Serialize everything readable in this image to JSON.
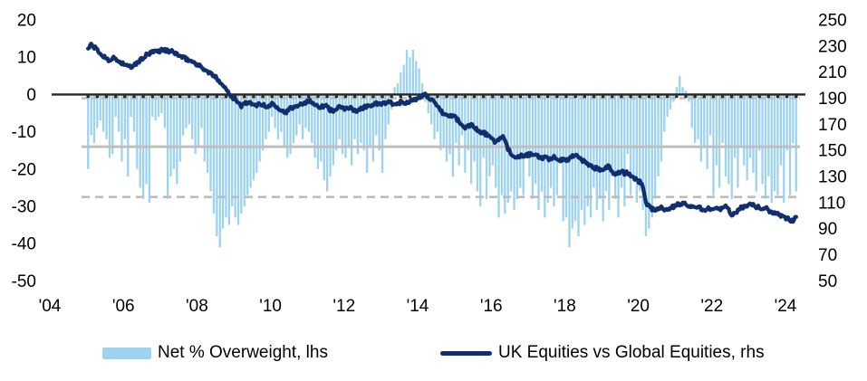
{
  "legend": {
    "bars_label": "Net % Overweight, lhs",
    "line_label": "UK Equities vs Global Equities, rhs"
  },
  "colors": {
    "bars": "#9CD3F0",
    "line": "#112E6E",
    "zero_line": "#262626",
    "ref_solid": "#BFBFBF",
    "ref_dashed": "#BDBDBD",
    "axis_text": "#000000",
    "background": "#FFFFFF"
  },
  "chart_data": {
    "type": "bar+line",
    "title": "",
    "grid": "off",
    "legend_position": "bottom",
    "x_axis": {
      "labels": [
        "'04",
        "'06",
        "'08",
        "'10",
        "'12",
        "'14",
        "'16",
        "'18",
        "'20",
        "'22",
        "'24"
      ],
      "years": [
        2004,
        2006,
        2008,
        2010,
        2012,
        2014,
        2016,
        2018,
        2020,
        2022,
        2024
      ],
      "range": [
        2004,
        2024.6
      ]
    },
    "left_axis": {
      "ticks": [
        20,
        10,
        0,
        -10,
        -20,
        -30,
        -40,
        -50
      ],
      "range": [
        -50,
        20
      ]
    },
    "right_axis": {
      "ticks": [
        250,
        230,
        210,
        190,
        170,
        150,
        130,
        110,
        90,
        70,
        50
      ],
      "range": [
        50,
        250
      ]
    },
    "reference_lines": [
      {
        "axis": "right",
        "value": 190,
        "style": "dashed",
        "note": "dashed gridline just under zero line"
      },
      {
        "axis": "left",
        "value": -14,
        "style": "solid",
        "note": "long-run average of Net % Overweight"
      },
      {
        "axis": "left",
        "value": -27.5,
        "style": "dashed",
        "note": "lower reference band"
      }
    ],
    "series": [
      {
        "name": "Net % Overweight, lhs",
        "type": "bar",
        "axis": "left",
        "start": "2005-01",
        "freq": "monthly",
        "values": [
          -20,
          -11,
          -13,
          -9,
          -7,
          -10,
          -12,
          -17,
          -16,
          -6,
          -10,
          -18,
          -12,
          -22,
          -6,
          -10,
          -20,
          -25,
          -28,
          -24,
          -29,
          -6,
          -7,
          -6,
          -5,
          -9,
          -28,
          -22,
          -20,
          -24,
          -18,
          -11,
          -9,
          -8,
          -12,
          -16,
          -14,
          -9,
          -18,
          -21,
          -26,
          -32,
          -38,
          -41,
          -36,
          -33,
          -35,
          -30,
          -33,
          -35,
          -32,
          -30,
          -27,
          -25,
          -23,
          -21,
          -18,
          -15,
          -12,
          -10,
          -6,
          -9,
          -12,
          -10,
          -14,
          -17,
          -16,
          -13,
          -11,
          -8,
          -12,
          -9,
          -10,
          -13,
          -17,
          -20,
          -18,
          -23,
          -26,
          -22,
          -19,
          -15,
          -12,
          -16,
          -17,
          -14,
          -19,
          -12,
          -16,
          -13,
          -15,
          -21,
          -14,
          -18,
          -11,
          -15,
          -21,
          -12,
          -8,
          -4,
          2,
          3,
          6,
          8,
          12,
          10,
          12,
          9,
          7,
          3,
          -2,
          -5,
          -8,
          -12,
          -10,
          -15,
          -14,
          -18,
          -16,
          -22,
          -13,
          -19,
          -11,
          -21,
          -15,
          -24,
          -18,
          -26,
          -30,
          -17,
          -28,
          -22,
          -19,
          -25,
          -33,
          -27,
          -32,
          -29,
          -26,
          -31,
          -28,
          -25,
          -27,
          -16,
          -22,
          -28,
          -24,
          -31,
          -26,
          -33,
          -29,
          -25,
          -30,
          -27,
          -18,
          -34,
          -33,
          -41,
          -36,
          -34,
          -38,
          -31,
          -35,
          -30,
          -33,
          -25,
          -31,
          -28,
          -34,
          -26,
          -31,
          -22,
          -28,
          -33,
          -25,
          -30,
          -16,
          -27,
          -23,
          -29,
          -26,
          -31,
          -38,
          -36,
          -33,
          -28,
          -22,
          -18,
          -10,
          -6,
          -4,
          -2,
          2,
          5,
          2,
          1,
          -2,
          -9,
          -13,
          -12,
          -18,
          -14,
          -20,
          -11,
          -27,
          -19,
          -25,
          -13,
          -22,
          -24,
          -28,
          -17,
          -25,
          -14,
          -19,
          -23,
          -17,
          -21,
          -26,
          -15,
          -24,
          -28,
          -22,
          -29,
          -26,
          -27,
          -19,
          -29,
          -15,
          -27,
          -13,
          -26
        ]
      },
      {
        "name": "UK Equities vs Global Equities, rhs",
        "type": "line",
        "axis": "right",
        "start": "2005-01",
        "freq": "monthly",
        "values": [
          228,
          231,
          229,
          227,
          224,
          222,
          221,
          219,
          221,
          220,
          218,
          217,
          216,
          214,
          214,
          215,
          217,
          219,
          221,
          223,
          224,
          225,
          226,
          226,
          227,
          227,
          226,
          226,
          225,
          224,
          222,
          221,
          220,
          219,
          218,
          217,
          215,
          214,
          212,
          210,
          209,
          207,
          205,
          203,
          200,
          197,
          194,
          191,
          189,
          186,
          184,
          186,
          187,
          186,
          184,
          185,
          186,
          185,
          183,
          184,
          186,
          185,
          183,
          181,
          179,
          180,
          182,
          183,
          184,
          186,
          186,
          187,
          188,
          187,
          186,
          184,
          183,
          184,
          185,
          181,
          180,
          182,
          183,
          182,
          182,
          183,
          182,
          180,
          181,
          182,
          183,
          184,
          184,
          185,
          186,
          185,
          186,
          186,
          187,
          186,
          185,
          186,
          187,
          186,
          187,
          188,
          188,
          189,
          190,
          192,
          193,
          191,
          189,
          186,
          183,
          180,
          178,
          177,
          176,
          177,
          175,
          172,
          169,
          167,
          169,
          170,
          168,
          166,
          163,
          164,
          162,
          160,
          158,
          156,
          159,
          161,
          157,
          151,
          147,
          146,
          145,
          146,
          145,
          146,
          147,
          146,
          147,
          145,
          144,
          145,
          143,
          144,
          145,
          144,
          142,
          143,
          142,
          144,
          146,
          147,
          145,
          143,
          141,
          140,
          138,
          136,
          137,
          135,
          136,
          138,
          137,
          134,
          132,
          133,
          134,
          132,
          133,
          131,
          129,
          127,
          126,
          123,
          110,
          107,
          105,
          104,
          105,
          107,
          105,
          104,
          106,
          107,
          108,
          109,
          110,
          109,
          108,
          107,
          106,
          107,
          105,
          104,
          106,
          105,
          106,
          107,
          105,
          106,
          107,
          104,
          100,
          102,
          104,
          106,
          107,
          108,
          109,
          108,
          107,
          106,
          105,
          106,
          104,
          103,
          102,
          101,
          100,
          99,
          98,
          97,
          96,
          99
        ]
      }
    ]
  }
}
